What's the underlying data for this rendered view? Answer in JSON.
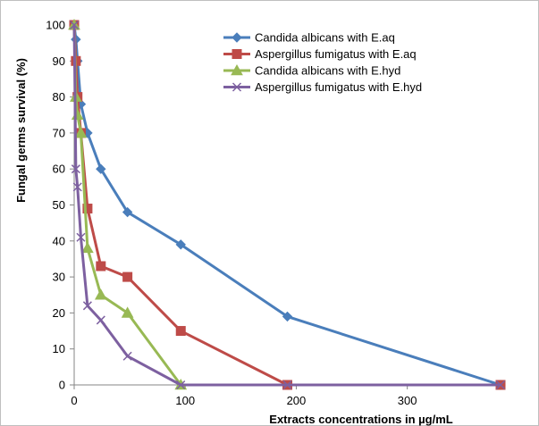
{
  "chart_data": {
    "type": "line",
    "title": "",
    "xlabel": "Extracts concentrations in µg/mL",
    "ylabel": "Fungal germs survival (%)",
    "xlim": [
      0,
      384
    ],
    "ylim": [
      0,
      100
    ],
    "xticks": [
      0,
      100,
      200,
      300
    ],
    "yticks": [
      0,
      10,
      20,
      30,
      40,
      50,
      60,
      70,
      80,
      90,
      100
    ],
    "grid": false,
    "legend_position": "top-right",
    "series": [
      {
        "name": "Candida  albicans with E.aq",
        "color": "#4A7EBB",
        "marker": "diamond",
        "x": [
          0,
          1.5,
          3,
          6,
          12,
          24,
          48,
          96,
          192,
          384
        ],
        "y": [
          100,
          96,
          90,
          78,
          70,
          60,
          48,
          39,
          19,
          0
        ]
      },
      {
        "name": "Aspergillus fumigatus with E.aq",
        "color": "#BE4B48",
        "marker": "square",
        "x": [
          0,
          1.5,
          3,
          6,
          12,
          24,
          48,
          96,
          192,
          384
        ],
        "y": [
          100,
          90,
          80,
          70,
          49,
          33,
          30,
          15,
          0,
          0
        ]
      },
      {
        "name": "Candida  albicans with E.hyd",
        "color": "#98B954",
        "marker": "triangle",
        "x": [
          0,
          1.5,
          3,
          6,
          12,
          24,
          48,
          96
        ],
        "y": [
          100,
          80,
          75,
          70,
          38,
          25,
          20,
          0
        ]
      },
      {
        "name": "Aspergillus fumigatus with E.hyd",
        "color": "#7D60A0",
        "marker": "x",
        "x": [
          0,
          1.5,
          3,
          6,
          12,
          24,
          48,
          96,
          192,
          384
        ],
        "y": [
          100,
          60,
          55,
          41,
          22,
          18,
          8,
          0,
          0,
          0
        ]
      }
    ]
  }
}
